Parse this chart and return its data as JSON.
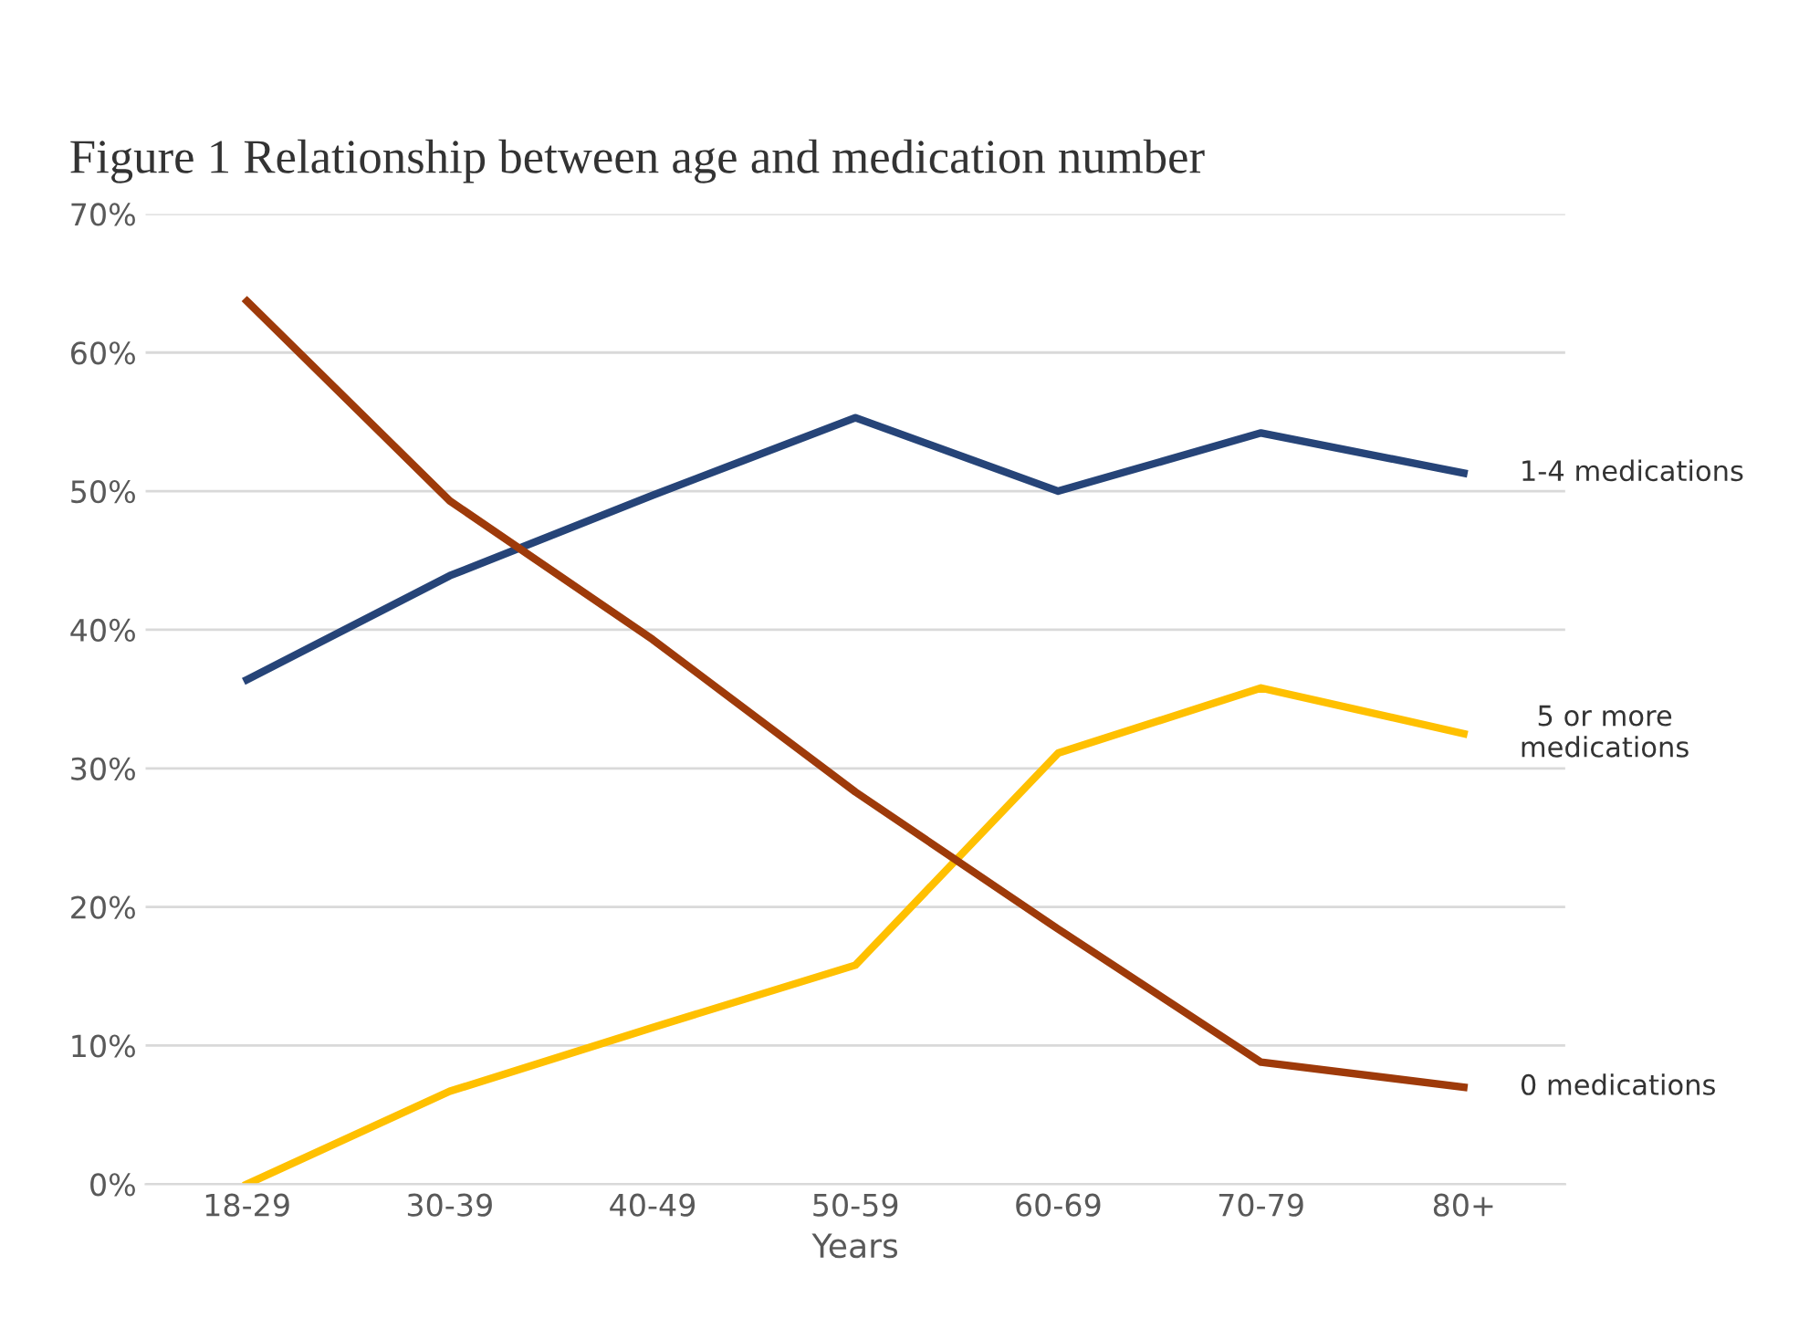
{
  "chart_data": {
    "type": "line",
    "title": "Figure 1 Relationship between age and medication number",
    "xlabel": "Years",
    "categories": [
      "18-29",
      "30-39",
      "40-49",
      "50-59",
      "60-69",
      "70-79",
      "80+"
    ],
    "series": [
      {
        "name": "1-4 medications",
        "color": "#264478",
        "values": [
          36.4,
          43.9,
          49.7,
          55.3,
          50.0,
          54.2,
          51.3
        ]
      },
      {
        "name": "5 or more\nmedications",
        "color": "#ffc000",
        "values": [
          0,
          6.7,
          11.3,
          15.8,
          31.1,
          35.8,
          32.5
        ]
      },
      {
        "name": "0 medications",
        "color": "#9e3a0a",
        "values": [
          63.7,
          49.3,
          39.3,
          28.3,
          18.4,
          8.8,
          7.0
        ]
      }
    ],
    "ylim": [
      0,
      70
    ],
    "yticks": [
      {
        "value": 0,
        "label": "0%"
      },
      {
        "value": 10,
        "label": "10%"
      },
      {
        "value": 20,
        "label": "20%"
      },
      {
        "value": 30,
        "label": "30%"
      },
      {
        "value": 40,
        "label": "40%"
      },
      {
        "value": 50,
        "label": "50%"
      },
      {
        "value": 60,
        "label": "60%"
      },
      {
        "value": 70,
        "label": "70%"
      }
    ],
    "grid": "y",
    "marker": "none",
    "line_style": "solid",
    "legend": false
  }
}
